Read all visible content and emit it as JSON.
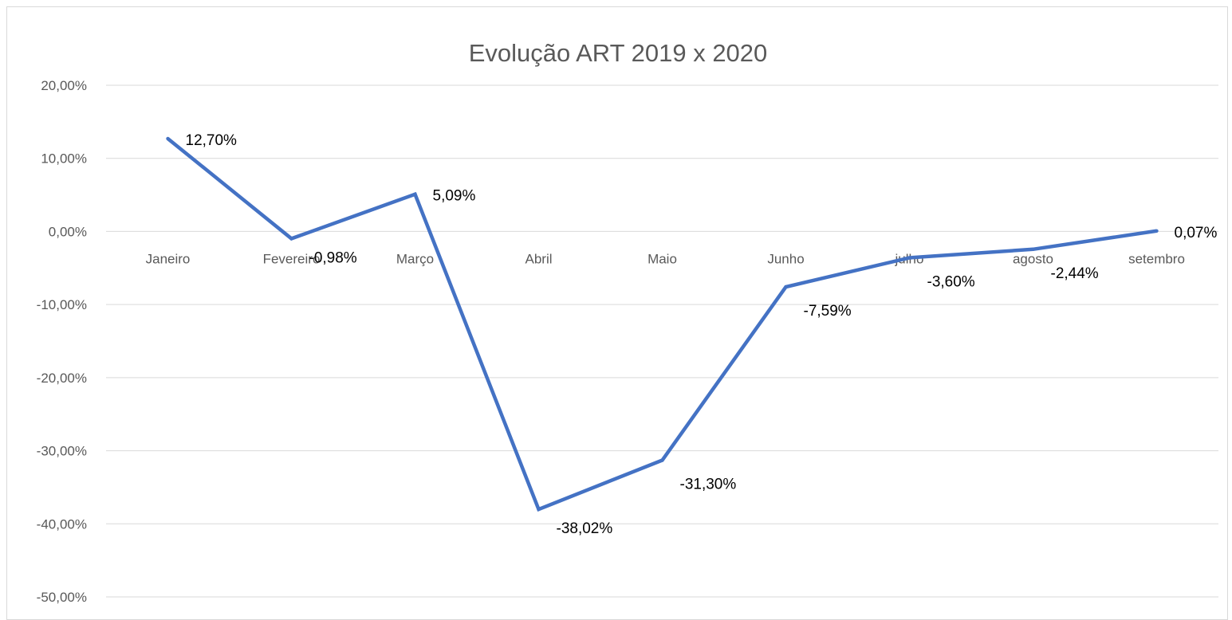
{
  "chart_data": {
    "type": "line",
    "title": "Evolução ART 2019 x 2020",
    "xlabel": "",
    "ylabel": "",
    "categories": [
      "Janeiro",
      "Fevereiro",
      "Março",
      "Abril",
      "Maio",
      "Junho",
      "julho",
      "agosto",
      "setembro"
    ],
    "series": [
      {
        "values": [
          12.7,
          -0.98,
          5.09,
          -38.02,
          -31.3,
          -7.59,
          -3.6,
          -2.44,
          0.07
        ],
        "data_labels": [
          "12,70%",
          "-0,98%",
          "5,09%",
          "-38,02%",
          "-31,30%",
          "-7,59%",
          "-3,60%",
          "-2,44%",
          "0,07%"
        ],
        "color": "#4472C4"
      }
    ],
    "ylim": [
      -50,
      20
    ],
    "yticks": [
      20,
      10,
      0,
      -10,
      -20,
      -30,
      -40,
      -50
    ],
    "ytick_labels": [
      "20,00%",
      "10,00%",
      "0,00%",
      "-10,00%",
      "-20,00%",
      "-30,00%",
      "-40,00%",
      "-50,00%"
    ],
    "grid": true,
    "gridline_color": "#d9d9d9",
    "legend": "none"
  }
}
